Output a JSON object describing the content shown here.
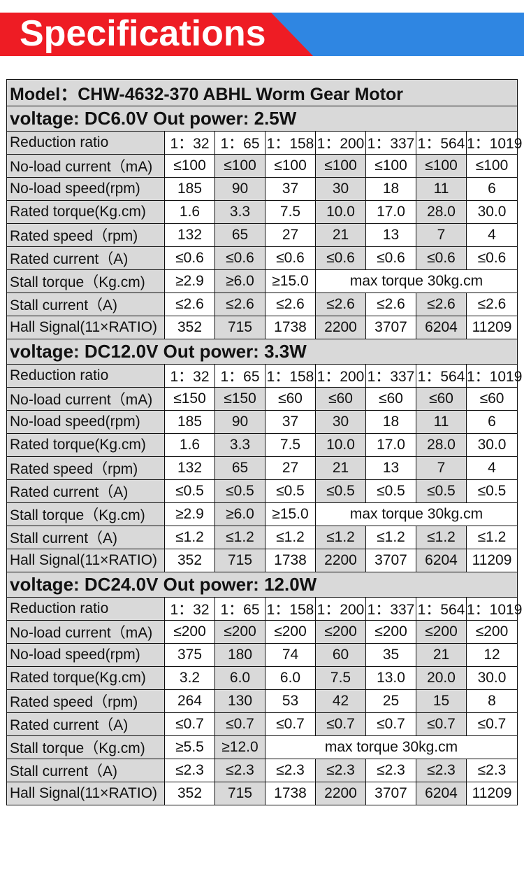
{
  "banner": {
    "title": "Specifications"
  },
  "model": "Model：CHW-4632-370 ABHL Worm Gear Motor",
  "sections": [
    {
      "title": "voltage:   DC6.0V  Out power: 2.5W",
      "rows": [
        {
          "label": "Reduction ratio",
          "values": [
            "1：32",
            "1：65",
            "1：158",
            "1：200",
            "1：337",
            "1：564",
            "1：1019"
          ]
        },
        {
          "label": "No-load current（mA)",
          "values": [
            "≤100",
            "≤100",
            "≤100",
            "≤100",
            "≤100",
            "≤100",
            "≤100"
          ]
        },
        {
          "label": "No-load speed(rpm)",
          "values": [
            "185",
            "90",
            "37",
            "30",
            "18",
            "11",
            "6"
          ]
        },
        {
          "label": "Rated torque(Kg.cm)",
          "values": [
            "1.6",
            "3.3",
            "7.5",
            "10.0",
            "17.0",
            "28.0",
            "30.0"
          ]
        },
        {
          "label": "Rated speed（rpm)",
          "values": [
            "132",
            "65",
            "27",
            "21",
            "13",
            "7",
            "4"
          ]
        },
        {
          "label": "Rated current（A)",
          "values": [
            "≤0.6",
            "≤0.6",
            "≤0.6",
            "≤0.6",
            "≤0.6",
            "≤0.6",
            "≤0.6"
          ]
        },
        {
          "label": "Stall torque（Kg.cm)",
          "values": [
            "≥2.9",
            "≥6.0",
            "≥15.0"
          ],
          "merged": "max torque  30kg.cm"
        },
        {
          "label": "Stall current（A)",
          "values": [
            "≤2.6",
            "≤2.6",
            "≤2.6",
            "≤2.6",
            "≤2.6",
            "≤2.6",
            "≤2.6"
          ]
        },
        {
          "label": "Hall Signal(11×RATIO)",
          "values": [
            "352",
            "715",
            "1738",
            "2200",
            "3707",
            "6204",
            "11209"
          ]
        }
      ]
    },
    {
      "title": "voltage:   DC12.0V Out power: 3.3W",
      "rows": [
        {
          "label": "Reduction ratio",
          "values": [
            "1：32",
            "1：65",
            "1：158",
            "1：200",
            "1：337",
            "1：564",
            "1：1019"
          ]
        },
        {
          "label": "No-load current（mA)",
          "values": [
            "≤150",
            "≤150",
            "≤60",
            "≤60",
            "≤60",
            "≤60",
            "≤60"
          ]
        },
        {
          "label": "No-load speed(rpm)",
          "values": [
            "185",
            "90",
            "37",
            "30",
            "18",
            "11",
            "6"
          ]
        },
        {
          "label": "Rated torque(Kg.cm)",
          "values": [
            "1.6",
            "3.3",
            "7.5",
            "10.0",
            "17.0",
            "28.0",
            "30.0"
          ]
        },
        {
          "label": "Rated speed（rpm)",
          "values": [
            "132",
            "65",
            "27",
            "21",
            "13",
            "7",
            "4"
          ]
        },
        {
          "label": "Rated current（A)",
          "values": [
            "≤0.5",
            "≤0.5",
            "≤0.5",
            "≤0.5",
            "≤0.5",
            "≤0.5",
            "≤0.5"
          ]
        },
        {
          "label": "Stall torque（Kg.cm)",
          "values": [
            "≥2.9",
            "≥6.0",
            "≥15.0"
          ],
          "merged": "max torque  30kg.cm"
        },
        {
          "label": "Stall current（A)",
          "values": [
            "≤1.2",
            "≤1.2",
            "≤1.2",
            "≤1.2",
            "≤1.2",
            "≤1.2",
            "≤1.2"
          ]
        },
        {
          "label": "Hall Signal(11×RATIO)",
          "values": [
            "352",
            "715",
            "1738",
            "2200",
            "3707",
            "6204",
            "11209"
          ]
        }
      ]
    },
    {
      "title": "voltage:   DC24.0V Out power: 12.0W",
      "rows": [
        {
          "label": "Reduction ratio",
          "values": [
            "1：32",
            "1：65",
            "1：158",
            "1：200",
            "1：337",
            "1：564",
            "1：1019"
          ]
        },
        {
          "label": "No-load current（mA)",
          "values": [
            "≤200",
            "≤200",
            "≤200",
            "≤200",
            "≤200",
            "≤200",
            "≤200"
          ]
        },
        {
          "label": "No-load speed(rpm)",
          "values": [
            "375",
            "180",
            "74",
            "60",
            "35",
            "21",
            "12"
          ]
        },
        {
          "label": "Rated torque(Kg.cm)",
          "values": [
            "3.2",
            "6.0",
            "6.0",
            "7.5",
            "13.0",
            "20.0",
            "30.0"
          ]
        },
        {
          "label": "Rated speed（rpm)",
          "values": [
            "264",
            "130",
            "53",
            "42",
            "25",
            "15",
            "8"
          ]
        },
        {
          "label": "Rated current（A)",
          "values": [
            "≤0.7",
            "≤0.7",
            "≤0.7",
            "≤0.7",
            "≤0.7",
            "≤0.7",
            "≤0.7"
          ]
        },
        {
          "label": "Stall torque（Kg.cm)",
          "values": [
            "≥5.5",
            "≥12.0"
          ],
          "merged": "max torque  30kg.cm"
        },
        {
          "label": "Stall current（A)",
          "values": [
            "≤2.3",
            "≤2.3",
            "≤2.3",
            "≤2.3",
            "≤2.3",
            "≤2.3",
            "≤2.3"
          ]
        },
        {
          "label": "Hall Signal(11×RATIO)",
          "values": [
            "352",
            "715",
            "1738",
            "2200",
            "3707",
            "6204",
            "11209"
          ]
        }
      ]
    }
  ]
}
